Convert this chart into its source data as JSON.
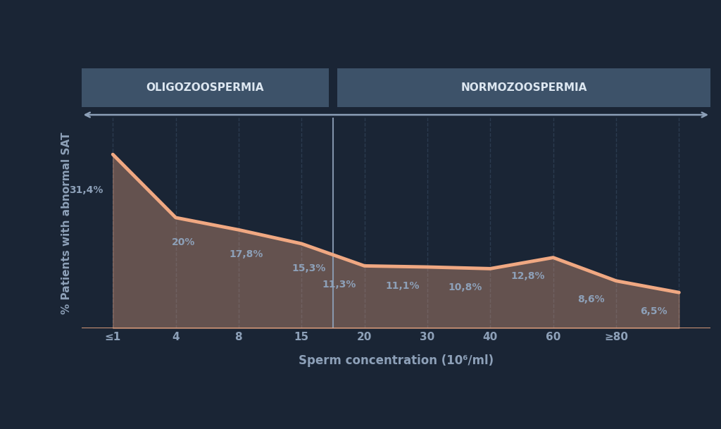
{
  "x_labels": [
    "≤1",
    "4",
    "8",
    "15",
    "20",
    "30",
    "40",
    "60",
    "≥80",
    ""
  ],
  "x_positions": [
    0,
    1,
    2,
    3,
    4,
    5,
    6,
    7,
    8,
    9
  ],
  "y_values": [
    31.4,
    20.0,
    17.8,
    15.3,
    11.3,
    11.1,
    10.8,
    12.8,
    8.6,
    6.5
  ],
  "y_labels": [
    "31,4%",
    "20%",
    "17,8%",
    "15,3%",
    "11,3%",
    "11,1%",
    "10,8%",
    "12,8%",
    "8,6%",
    "6,5%"
  ],
  "background_color": "#1a2535",
  "line_color": "#f0a882",
  "fill_color": "#f0a882",
  "fill_alpha": 0.35,
  "label_color": "#8da0b8",
  "grid_color": "#2e3e52",
  "header_bg_color": "#3d5269",
  "header_text_color": "#dce6f0",
  "oligo_label": "OLIGOZOOSPERMIA",
  "normo_label": "NORMOZOOSPERMIA",
  "xlabel": "Sperm concentration (10⁶/ml)",
  "ylabel": "% Patients with abnormal SAT",
  "divider_x": 3.5,
  "ylim": [
    0,
    38
  ],
  "xlim": [
    -0.5,
    9.5
  ]
}
